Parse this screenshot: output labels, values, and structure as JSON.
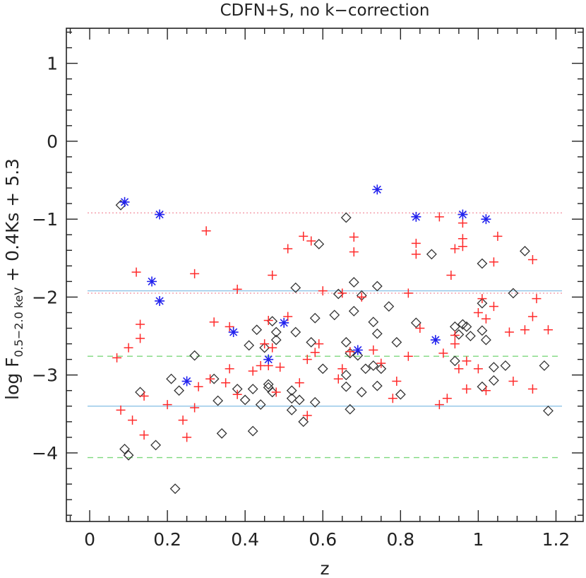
{
  "chart_data": {
    "type": "scatter",
    "title": "CDFN+S, no k−correction",
    "xlabel": "z",
    "ylabel": {
      "prefix": "log F",
      "subscript": "0.5−2.0 keV",
      "suffix": " + 0.4Ks + 5.3"
    },
    "xlim": [
      -0.06,
      1.27
    ],
    "ylim": [
      -4.88,
      1.45
    ],
    "x_ticks": [
      {
        "value": 0,
        "label": "0"
      },
      {
        "value": 0.2,
        "label": "0.2"
      },
      {
        "value": 0.4,
        "label": "0.4"
      },
      {
        "value": 0.6,
        "label": "0.6"
      },
      {
        "value": 0.8,
        "label": "0.8"
      },
      {
        "value": 1,
        "label": "1"
      },
      {
        "value": 1.2,
        "label": "1.2"
      }
    ],
    "x_minor_step": 0.05,
    "y_ticks": [
      {
        "value": 1,
        "label": "1"
      },
      {
        "value": 0,
        "label": "0"
      },
      {
        "value": -1,
        "label": "−1"
      },
      {
        "value": -2,
        "label": "−2"
      },
      {
        "value": -3,
        "label": "−3"
      },
      {
        "value": -4,
        "label": "−4"
      }
    ],
    "y_minor_step": 0.2,
    "colors": {
      "frame": "#222222",
      "diamond": "#333333",
      "plus": "#ff2a2a",
      "star": "#2222ee",
      "blue_line": "#8ec3e6",
      "pink_line": "#f49aa8",
      "green_line": "#7ed87e"
    },
    "reference_lines": [
      {
        "name": "pink-dotted-upper",
        "y": -0.92,
        "style": "dotted",
        "color": "#f49aa8"
      },
      {
        "name": "pink-dotted-lower",
        "y": -1.95,
        "style": "dotted",
        "color": "#f49aa8"
      },
      {
        "name": "blue-solid-upper",
        "y": -1.92,
        "style": "solid",
        "color": "#8ec3e6"
      },
      {
        "name": "blue-solid-lower",
        "y": -3.4,
        "style": "solid",
        "color": "#8ec3e6"
      },
      {
        "name": "green-dashed-upper",
        "y": -2.76,
        "style": "dashed",
        "color": "#7ed87e"
      },
      {
        "name": "green-dashed-lower",
        "y": -4.06,
        "style": "dashed",
        "color": "#7ed87e"
      }
    ],
    "series": [
      {
        "name": "diamonds",
        "marker": "diamond",
        "points": [
          [
            0.08,
            -0.82
          ],
          [
            0.09,
            -3.95
          ],
          [
            0.1,
            -4.03
          ],
          [
            0.13,
            -3.22
          ],
          [
            0.17,
            -3.9
          ],
          [
            0.21,
            -3.05
          ],
          [
            0.22,
            -4.46
          ],
          [
            0.23,
            -3.2
          ],
          [
            0.27,
            -2.75
          ],
          [
            0.32,
            -3.05
          ],
          [
            0.33,
            -3.33
          ],
          [
            0.34,
            -3.75
          ],
          [
            0.38,
            -3.18
          ],
          [
            0.4,
            -3.32
          ],
          [
            0.41,
            -2.62
          ],
          [
            0.42,
            -3.18
          ],
          [
            0.42,
            -3.72
          ],
          [
            0.43,
            -2.42
          ],
          [
            0.44,
            -3.38
          ],
          [
            0.45,
            -2.65
          ],
          [
            0.46,
            -3.12
          ],
          [
            0.46,
            -3.16
          ],
          [
            0.47,
            -2.31
          ],
          [
            0.47,
            -3.22
          ],
          [
            0.48,
            -2.45
          ],
          [
            0.48,
            -2.55
          ],
          [
            0.52,
            -3.2
          ],
          [
            0.52,
            -3.3
          ],
          [
            0.52,
            -3.45
          ],
          [
            0.53,
            -2.45
          ],
          [
            0.53,
            -1.88
          ],
          [
            0.54,
            -3.32
          ],
          [
            0.55,
            -3.6
          ],
          [
            0.57,
            -2.58
          ],
          [
            0.58,
            -3.35
          ],
          [
            0.58,
            -2.27
          ],
          [
            0.59,
            -1.32
          ],
          [
            0.6,
            -2.92
          ],
          [
            0.63,
            -2.23
          ],
          [
            0.64,
            -1.96
          ],
          [
            0.66,
            -0.98
          ],
          [
            0.66,
            -2.58
          ],
          [
            0.66,
            -3.15
          ],
          [
            0.66,
            -3.0
          ],
          [
            0.67,
            -3.44
          ],
          [
            0.67,
            -2.72
          ],
          [
            0.68,
            -1.81
          ],
          [
            0.68,
            -2.18
          ],
          [
            0.69,
            -2.75
          ],
          [
            0.7,
            -3.22
          ],
          [
            0.7,
            -1.98
          ],
          [
            0.71,
            -2.92
          ],
          [
            0.73,
            -2.88
          ],
          [
            0.73,
            -2.32
          ],
          [
            0.74,
            -1.86
          ],
          [
            0.74,
            -2.47
          ],
          [
            0.74,
            -3.14
          ],
          [
            0.75,
            -2.92
          ],
          [
            0.77,
            -2.12
          ],
          [
            0.79,
            -2.58
          ],
          [
            0.8,
            -3.25
          ],
          [
            0.84,
            -2.33
          ],
          [
            0.88,
            -1.45
          ],
          [
            0.94,
            -2.82
          ],
          [
            0.94,
            -2.38
          ],
          [
            0.95,
            -2.48
          ],
          [
            0.96,
            -2.35
          ],
          [
            0.97,
            -2.38
          ],
          [
            0.98,
            -2.5
          ],
          [
            1.01,
            -1.57
          ],
          [
            1.01,
            -2.08
          ],
          [
            1.01,
            -2.43
          ],
          [
            1.01,
            -3.15
          ],
          [
            1.02,
            -2.55
          ],
          [
            1.04,
            -3.07
          ],
          [
            1.04,
            -2.9
          ],
          [
            1.07,
            -2.88
          ],
          [
            1.09,
            -1.95
          ],
          [
            1.12,
            -1.41
          ],
          [
            1.17,
            -2.88
          ],
          [
            1.18,
            -3.46
          ]
        ]
      },
      {
        "name": "red-plus",
        "marker": "plus",
        "points": [
          [
            0.07,
            -2.78
          ],
          [
            0.08,
            -3.45
          ],
          [
            0.1,
            -2.65
          ],
          [
            0.11,
            -3.58
          ],
          [
            0.12,
            -1.68
          ],
          [
            0.13,
            -2.35
          ],
          [
            0.13,
            -2.53
          ],
          [
            0.14,
            -3.77
          ],
          [
            0.14,
            -3.27
          ],
          [
            0.2,
            -3.38
          ],
          [
            0.24,
            -3.58
          ],
          [
            0.25,
            -3.8
          ],
          [
            0.27,
            -1.7
          ],
          [
            0.27,
            -3.42
          ],
          [
            0.28,
            -3.15
          ],
          [
            0.3,
            -1.15
          ],
          [
            0.31,
            -3.05
          ],
          [
            0.32,
            -2.32
          ],
          [
            0.35,
            -3.1
          ],
          [
            0.36,
            -2.38
          ],
          [
            0.36,
            -2.92
          ],
          [
            0.38,
            -1.9
          ],
          [
            0.38,
            -3.25
          ],
          [
            0.42,
            -2.95
          ],
          [
            0.44,
            -2.88
          ],
          [
            0.45,
            -2.6
          ],
          [
            0.46,
            -2.3
          ],
          [
            0.46,
            -2.88
          ],
          [
            0.47,
            -2.65
          ],
          [
            0.47,
            -1.72
          ],
          [
            0.48,
            -3.22
          ],
          [
            0.49,
            -2.9
          ],
          [
            0.51,
            -2.25
          ],
          [
            0.51,
            -1.38
          ],
          [
            0.54,
            -3.1
          ],
          [
            0.55,
            -1.22
          ],
          [
            0.56,
            -2.8
          ],
          [
            0.56,
            -3.52
          ],
          [
            0.57,
            -1.28
          ],
          [
            0.58,
            -2.71
          ],
          [
            0.59,
            -2.6
          ],
          [
            0.6,
            -1.92
          ],
          [
            0.64,
            -3.05
          ],
          [
            0.65,
            -2.92
          ],
          [
            0.65,
            -1.95
          ],
          [
            0.67,
            -2.7
          ],
          [
            0.68,
            -1.42
          ],
          [
            0.68,
            -1.23
          ],
          [
            0.7,
            -2.0
          ],
          [
            0.73,
            -2.68
          ],
          [
            0.75,
            -2.85
          ],
          [
            0.78,
            -3.3
          ],
          [
            0.79,
            -3.08
          ],
          [
            0.82,
            -1.95
          ],
          [
            0.82,
            -2.76
          ],
          [
            0.84,
            -1.31
          ],
          [
            0.84,
            -1.45
          ],
          [
            0.85,
            -2.4
          ],
          [
            0.9,
            -0.97
          ],
          [
            0.9,
            -3.38
          ],
          [
            0.91,
            -2.72
          ],
          [
            0.92,
            -3.3
          ],
          [
            0.93,
            -1.72
          ],
          [
            0.94,
            -2.49
          ],
          [
            0.94,
            -2.6
          ],
          [
            0.94,
            -1.38
          ],
          [
            0.95,
            -2.92
          ],
          [
            0.96,
            -1.25
          ],
          [
            0.96,
            -1.35
          ],
          [
            0.96,
            -1.05
          ],
          [
            0.97,
            -2.82
          ],
          [
            0.97,
            -3.18
          ],
          [
            1.0,
            -2.92
          ],
          [
            1.0,
            -2.2
          ],
          [
            1.01,
            -2.02
          ],
          [
            1.02,
            -3.2
          ],
          [
            1.02,
            -2.28
          ],
          [
            1.04,
            -2.12
          ],
          [
            1.04,
            -1.55
          ],
          [
            1.05,
            -1.22
          ],
          [
            1.08,
            -2.45
          ],
          [
            1.09,
            -3.08
          ],
          [
            1.12,
            -2.42
          ],
          [
            1.14,
            -2.25
          ],
          [
            1.14,
            -3.18
          ],
          [
            1.14,
            -1.52
          ],
          [
            1.15,
            -2.02
          ],
          [
            1.18,
            -2.42
          ]
        ]
      },
      {
        "name": "blue-stars",
        "marker": "star",
        "points": [
          [
            0.09,
            -0.78
          ],
          [
            0.16,
            -1.8
          ],
          [
            0.18,
            -0.94
          ],
          [
            0.18,
            -2.05
          ],
          [
            0.25,
            -3.08
          ],
          [
            0.37,
            -2.45
          ],
          [
            0.46,
            -2.8
          ],
          [
            0.5,
            -2.33
          ],
          [
            0.69,
            -2.68
          ],
          [
            0.74,
            -0.62
          ],
          [
            0.84,
            -0.97
          ],
          [
            0.89,
            -2.55
          ],
          [
            0.96,
            -0.94
          ],
          [
            1.02,
            -1.0
          ]
        ]
      }
    ]
  }
}
